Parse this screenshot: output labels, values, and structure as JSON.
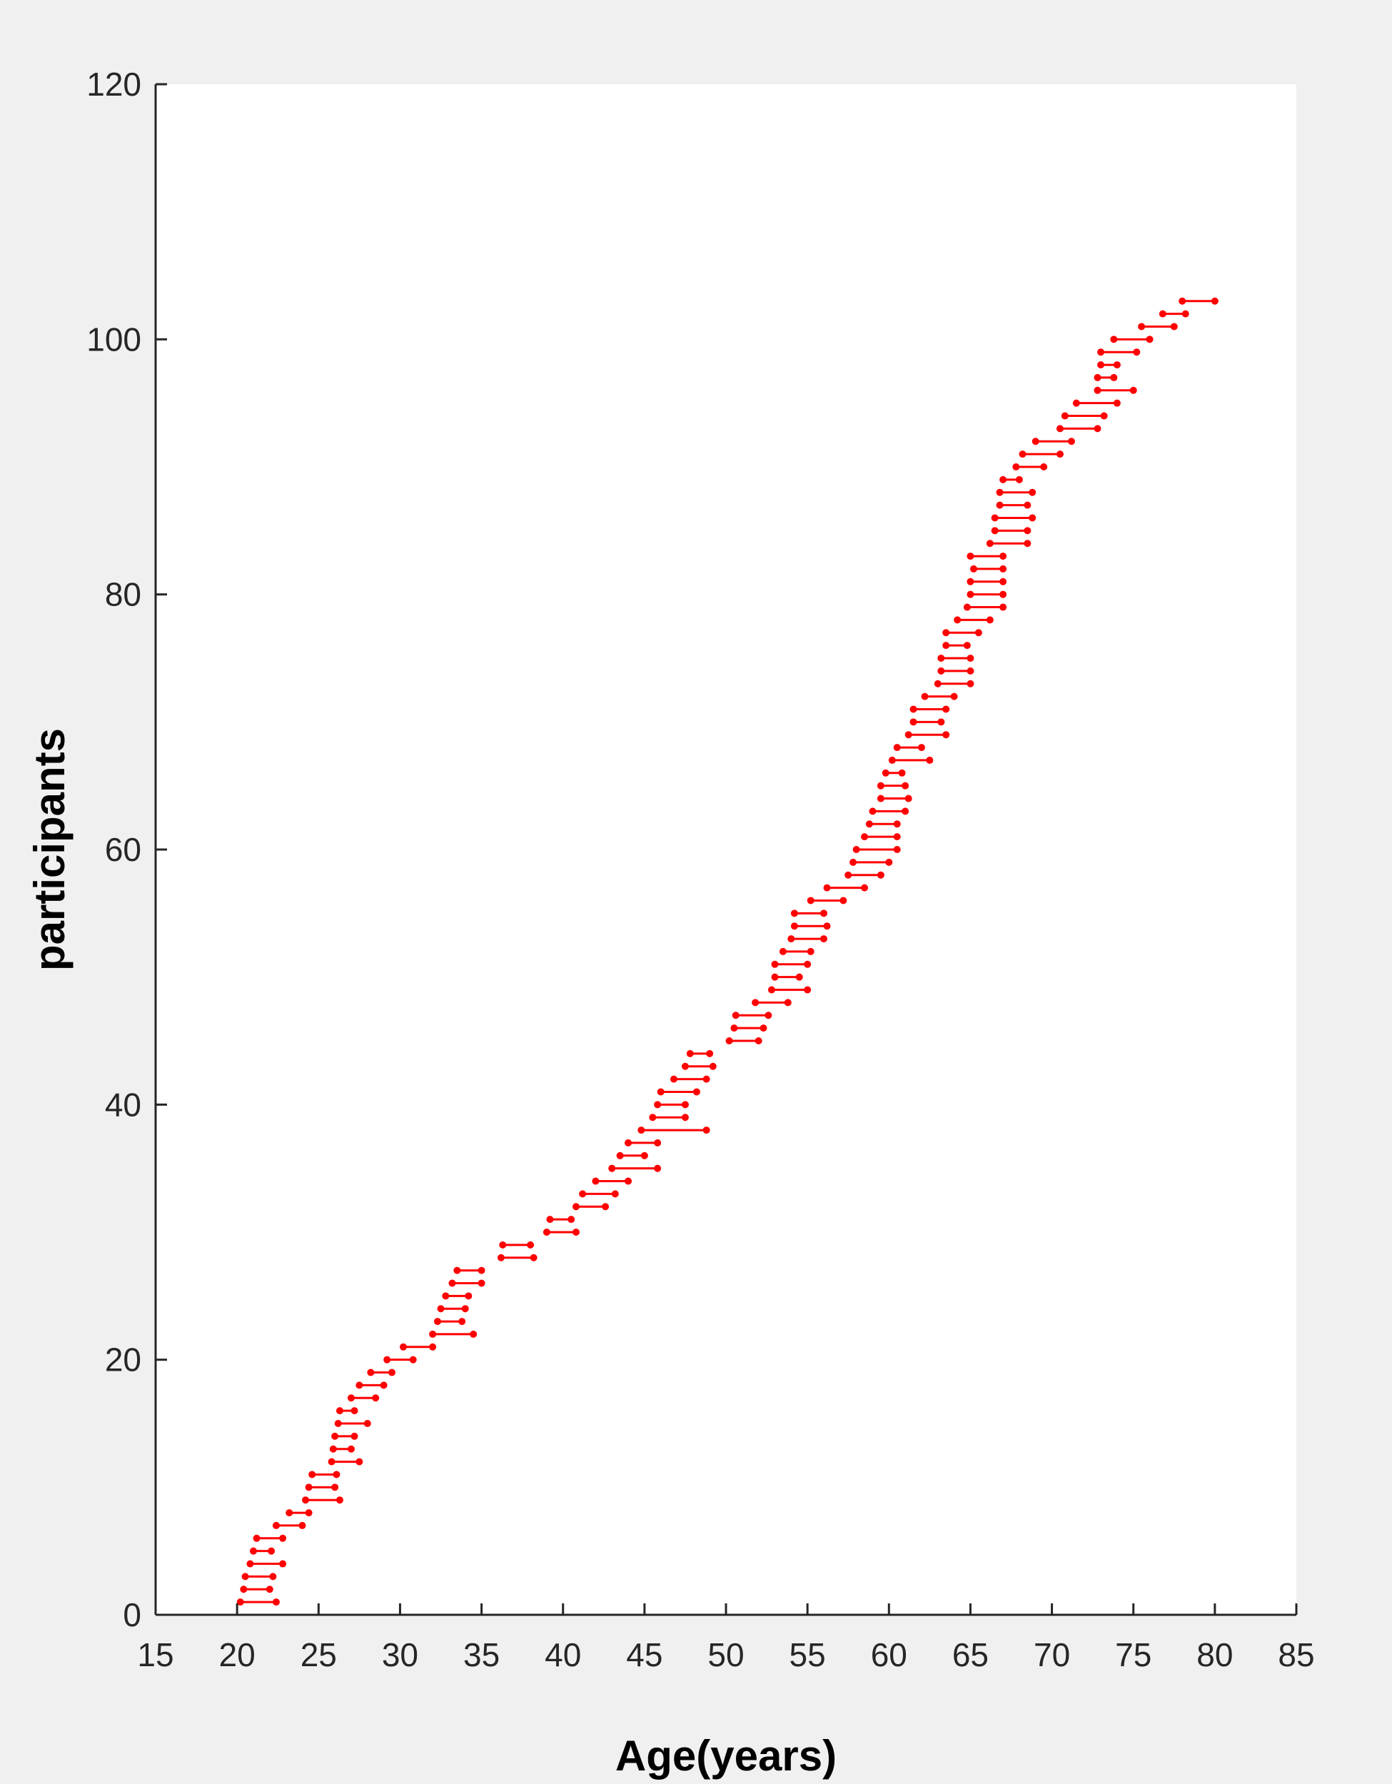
{
  "chart_data": {
    "type": "scatter",
    "title": "",
    "xlabel": "Age(years)",
    "ylabel": "participants",
    "xlim": [
      15,
      85
    ],
    "ylim": [
      0,
      120
    ],
    "xticks": [
      15,
      20,
      25,
      30,
      35,
      40,
      45,
      50,
      55,
      60,
      65,
      70,
      75,
      80,
      85
    ],
    "yticks": [
      0,
      20,
      40,
      60,
      80,
      100,
      120
    ],
    "grid": false,
    "colors": {
      "series": "#ff0000",
      "axes": "#262626",
      "plot_bg": "#ffffff",
      "figure_bg": "#f0f0f0"
    },
    "series": [
      {
        "segments": [
          [
            1,
            20.2,
            22.4
          ],
          [
            2,
            20.4,
            22.0
          ],
          [
            3,
            20.5,
            22.2
          ],
          [
            4,
            20.8,
            22.8
          ],
          [
            5,
            21.0,
            22.1
          ],
          [
            6,
            21.2,
            22.8
          ],
          [
            7,
            22.4,
            24.0
          ],
          [
            8,
            23.2,
            24.4
          ],
          [
            9,
            24.2,
            26.3
          ],
          [
            10,
            24.4,
            26.0
          ],
          [
            11,
            24.6,
            26.1
          ],
          [
            12,
            25.8,
            27.5
          ],
          [
            13,
            25.9,
            27.0
          ],
          [
            14,
            26.0,
            27.2
          ],
          [
            15,
            26.2,
            28.0
          ],
          [
            16,
            26.3,
            27.2
          ],
          [
            17,
            27.0,
            28.5
          ],
          [
            18,
            27.5,
            29.0
          ],
          [
            19,
            28.2,
            29.5
          ],
          [
            20,
            29.2,
            30.8
          ],
          [
            21,
            30.2,
            32.0
          ],
          [
            22,
            32.0,
            34.5
          ],
          [
            23,
            32.3,
            33.8
          ],
          [
            24,
            32.5,
            34.0
          ],
          [
            25,
            32.8,
            34.2
          ],
          [
            26,
            33.2,
            35.0
          ],
          [
            27,
            33.5,
            35.0
          ],
          [
            28,
            36.2,
            38.2
          ],
          [
            29,
            36.3,
            38.0
          ],
          [
            30,
            39.0,
            40.8
          ],
          [
            31,
            39.2,
            40.5
          ],
          [
            32,
            40.8,
            42.6
          ],
          [
            33,
            41.2,
            43.2
          ],
          [
            34,
            42.0,
            44.0
          ],
          [
            35,
            43.0,
            45.8
          ],
          [
            36,
            43.5,
            45.0
          ],
          [
            37,
            44.0,
            45.8
          ],
          [
            38,
            44.8,
            48.8
          ],
          [
            39,
            45.5,
            47.5
          ],
          [
            40,
            45.8,
            47.5
          ],
          [
            41,
            46.0,
            48.2
          ],
          [
            42,
            46.8,
            48.8
          ],
          [
            43,
            47.5,
            49.2
          ],
          [
            44,
            47.8,
            49.0
          ],
          [
            45,
            50.2,
            52.0
          ],
          [
            46,
            50.5,
            52.3
          ],
          [
            47,
            50.6,
            52.6
          ],
          [
            48,
            51.8,
            53.8
          ],
          [
            49,
            52.8,
            55.0
          ],
          [
            50,
            53.0,
            54.5
          ],
          [
            51,
            53.0,
            55.0
          ],
          [
            52,
            53.5,
            55.2
          ],
          [
            53,
            54.0,
            56.0
          ],
          [
            54,
            54.2,
            56.2
          ],
          [
            55,
            54.2,
            56.0
          ],
          [
            56,
            55.2,
            57.2
          ],
          [
            57,
            56.2,
            58.5
          ],
          [
            58,
            57.5,
            59.5
          ],
          [
            59,
            57.8,
            60.0
          ],
          [
            60,
            58.0,
            60.5
          ],
          [
            61,
            58.5,
            60.5
          ],
          [
            62,
            58.8,
            60.5
          ],
          [
            63,
            59.0,
            61.0
          ],
          [
            64,
            59.5,
            61.2
          ],
          [
            65,
            59.5,
            61.0
          ],
          [
            66,
            59.8,
            60.8
          ],
          [
            67,
            60.2,
            62.5
          ],
          [
            68,
            60.5,
            62.0
          ],
          [
            69,
            61.2,
            63.5
          ],
          [
            70,
            61.5,
            63.2
          ],
          [
            71,
            61.5,
            63.5
          ],
          [
            72,
            62.2,
            64.0
          ],
          [
            73,
            63.0,
            65.0
          ],
          [
            74,
            63.2,
            65.0
          ],
          [
            75,
            63.2,
            65.0
          ],
          [
            76,
            63.5,
            64.8
          ],
          [
            77,
            63.5,
            65.5
          ],
          [
            78,
            64.2,
            66.2
          ],
          [
            79,
            64.8,
            67.0
          ],
          [
            80,
            65.0,
            67.0
          ],
          [
            81,
            65.0,
            67.0
          ],
          [
            82,
            65.2,
            67.0
          ],
          [
            83,
            65.0,
            67.0
          ],
          [
            84,
            66.2,
            68.5
          ],
          [
            85,
            66.5,
            68.5
          ],
          [
            86,
            66.5,
            68.8
          ],
          [
            87,
            66.8,
            68.5
          ],
          [
            88,
            66.8,
            68.8
          ],
          [
            89,
            67.0,
            68.0
          ],
          [
            90,
            67.8,
            69.5
          ],
          [
            91,
            68.2,
            70.5
          ],
          [
            92,
            69.0,
            71.2
          ],
          [
            93,
            70.5,
            72.8
          ],
          [
            94,
            70.8,
            73.2
          ],
          [
            95,
            71.5,
            74.0
          ],
          [
            96,
            72.8,
            75.0
          ],
          [
            97,
            72.8,
            73.8
          ],
          [
            98,
            73.0,
            74.0
          ],
          [
            99,
            73.0,
            75.2
          ],
          [
            100,
            73.8,
            76.0
          ],
          [
            101,
            75.5,
            77.5
          ],
          [
            102,
            76.8,
            78.2
          ],
          [
            103,
            78.0,
            80.0
          ]
        ]
      }
    ]
  }
}
